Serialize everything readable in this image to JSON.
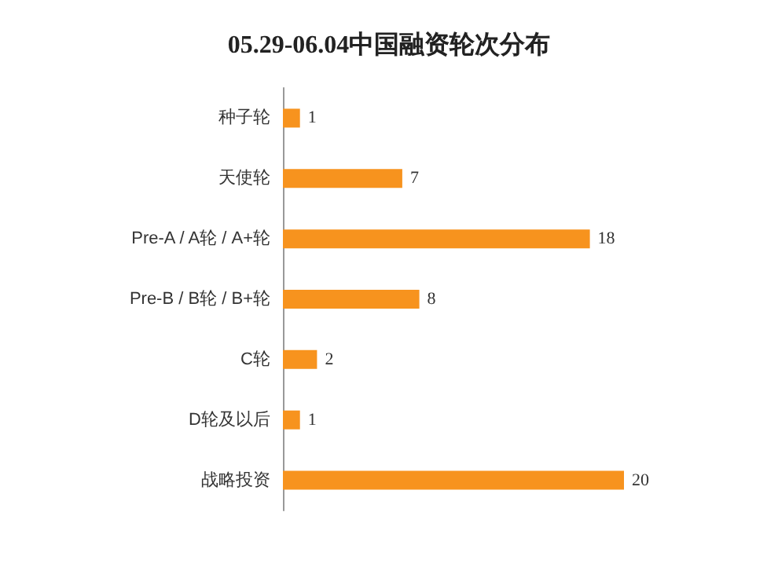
{
  "chart_data": {
    "type": "bar",
    "orientation": "horizontal",
    "title": "05.29-06.04中国融资轮次分布",
    "categories": [
      "种子轮",
      "天使轮",
      "Pre-A / A轮 / A+轮",
      "Pre-B / B轮 / B+轮",
      "C轮",
      "D轮及以后",
      "战略投资"
    ],
    "values": [
      1,
      7,
      18,
      8,
      2,
      1,
      20
    ],
    "color": "#f7931e",
    "data_labels": true
  }
}
